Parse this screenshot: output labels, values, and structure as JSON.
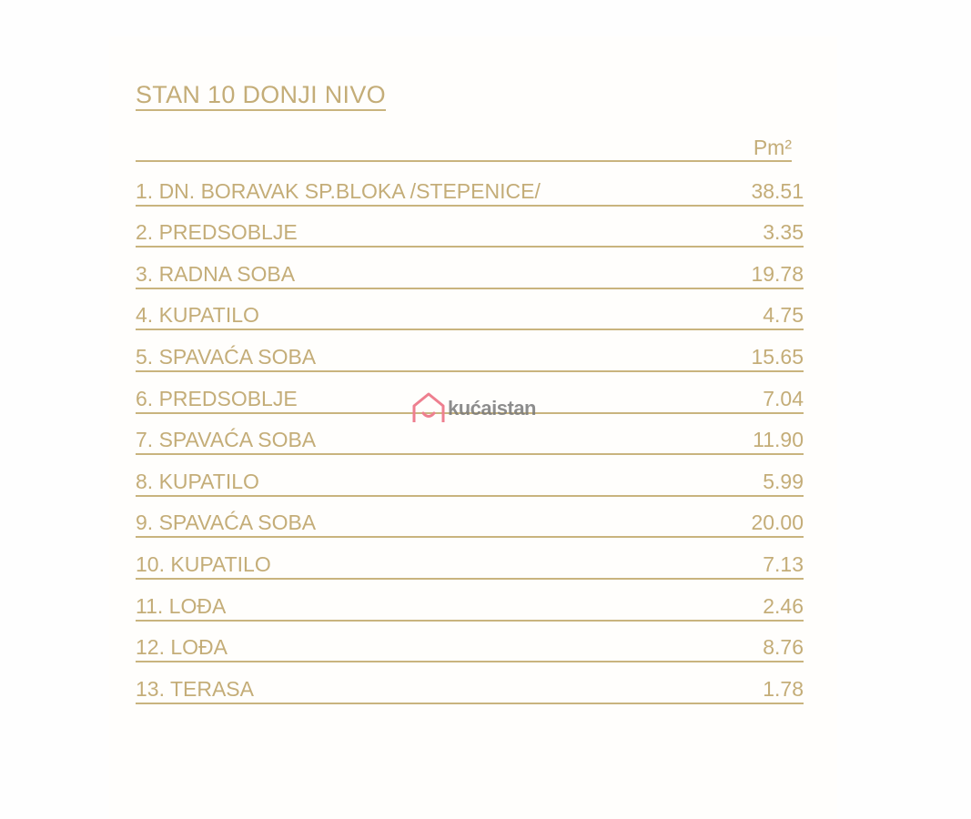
{
  "title": "STAN 10 DONJI NIVO",
  "unit_header": "Pm²",
  "rows": [
    {
      "label": "1. DN. BORAVAK SP.BLOKA /STEPENICE/",
      "value": "38.51"
    },
    {
      "label": "2. PREDSOBLJE",
      "value": "3.35"
    },
    {
      "label": "3. RADNA SOBA",
      "value": "19.78"
    },
    {
      "label": "4. KUPATILO",
      "value": "4.75"
    },
    {
      "label": "5. SPAVAĆA SOBA",
      "value": "15.65"
    },
    {
      "label": "6. PREDSOBLJE",
      "value": "7.04"
    },
    {
      "label": "7. SPAVAĆA SOBA",
      "value": "11.90"
    },
    {
      "label": "8. KUPATILO",
      "value": "5.99"
    },
    {
      "label": "9. SPAVAĆA SOBA",
      "value": "20.00"
    },
    {
      "label": "10. KUPATILO",
      "value": "7.13"
    },
    {
      "label": "11. LOĐA",
      "value": "2.46"
    },
    {
      "label": "12. LOĐA",
      "value": "8.76"
    },
    {
      "label": "13. TERASA",
      "value": "1.78"
    }
  ],
  "watermark": {
    "text": "kućaistan",
    "icon": "house-icon",
    "icon_color": "#ee7f8f"
  },
  "colors": {
    "text": "#c4ad78",
    "background": "#fefefe"
  }
}
